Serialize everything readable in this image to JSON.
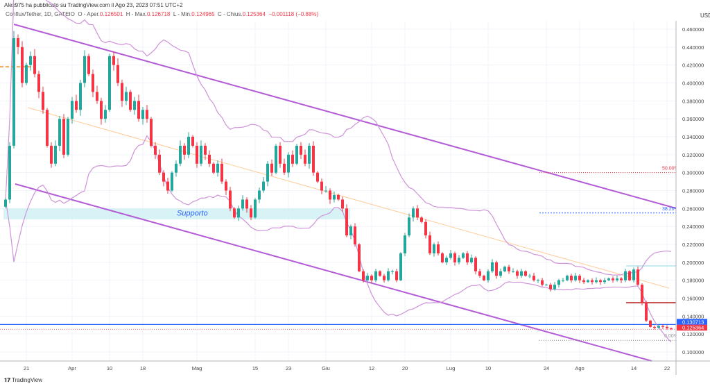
{
  "header": {
    "publisher": "Alex975 ha pubblicato su TradingView.com il Ago 23, 2023 07:51 UTC+2",
    "symbol": "Conflux/Tether, 1D, GATEIO",
    "open_label": "O - Aper.",
    "open": "0.126501",
    "high_label": "H - Max.",
    "high": "0.126718",
    "low_label": "L - Min.",
    "low": "0.124965",
    "close_label": "C - Chius.",
    "close": "0.125364",
    "change": "−0.001118 (−0.88%)",
    "currency": "USDT"
  },
  "price_axis": [
    "0.460000",
    "0.440000",
    "0.420000",
    "0.400000",
    "0.380000",
    "0.360000",
    "0.340000",
    "0.320000",
    "0.300000",
    "0.280000",
    "0.260000",
    "0.240000",
    "0.220000",
    "0.200000",
    "0.180000",
    "0.160000",
    "0.140000",
    "0.120000",
    "0.100000"
  ],
  "price_badges": {
    "blue": "0.130713",
    "red": "0.125364"
  },
  "date_axis": [
    {
      "label": "21",
      "day": 5
    },
    {
      "label": "Apr",
      "day": 16
    },
    {
      "label": "10",
      "day": 25
    },
    {
      "label": "18",
      "day": 33
    },
    {
      "label": "Mag",
      "day": 46
    },
    {
      "label": "15",
      "day": 60
    },
    {
      "label": "23",
      "day": 68
    },
    {
      "label": "Giu",
      "day": 77
    },
    {
      "label": "12",
      "day": 88
    },
    {
      "label": "20",
      "day": 96
    },
    {
      "label": "Lug",
      "day": 107
    },
    {
      "label": "10",
      "day": 116
    },
    {
      "label": "24",
      "day": 130
    },
    {
      "label": "Ago",
      "day": 138
    },
    {
      "label": "14",
      "day": 151
    },
    {
      "label": "22",
      "day": 159
    }
  ],
  "annotations": {
    "support": "Supporto",
    "fib50": "50.00%",
    "fib382": "38.20%",
    "fib0": "0.00%"
  },
  "brand": "TradingView",
  "colors": {
    "up": "#26a69a",
    "down": "#f23645",
    "bands": "#ce93d8",
    "channel": "#b35cd6",
    "blue_line": "#2962ff"
  },
  "chart_data": {
    "type": "candlestick",
    "start_date": "2023-03-16",
    "closes": [
      0.27,
      0.33,
      0.45,
      0.44,
      0.4,
      0.42,
      0.43,
      0.41,
      0.39,
      0.37,
      0.33,
      0.31,
      0.33,
      0.36,
      0.32,
      0.36,
      0.38,
      0.37,
      0.4,
      0.43,
      0.41,
      0.39,
      0.38,
      0.36,
      0.37,
      0.43,
      0.42,
      0.4,
      0.38,
      0.39,
      0.37,
      0.38,
      0.36,
      0.37,
      0.36,
      0.33,
      0.32,
      0.3,
      0.29,
      0.28,
      0.3,
      0.31,
      0.33,
      0.32,
      0.34,
      0.33,
      0.31,
      0.33,
      0.32,
      0.31,
      0.3,
      0.31,
      0.29,
      0.28,
      0.26,
      0.25,
      0.26,
      0.27,
      0.26,
      0.25,
      0.27,
      0.28,
      0.29,
      0.31,
      0.3,
      0.33,
      0.31,
      0.3,
      0.32,
      0.31,
      0.33,
      0.32,
      0.31,
      0.33,
      0.3,
      0.29,
      0.28,
      0.28,
      0.27,
      0.275,
      0.27,
      0.26,
      0.23,
      0.24,
      0.22,
      0.19,
      0.18,
      0.185,
      0.18,
      0.19,
      0.185,
      0.18,
      0.19,
      0.19,
      0.18,
      0.21,
      0.23,
      0.25,
      0.26,
      0.25,
      0.245,
      0.23,
      0.21,
      0.22,
      0.21,
      0.2,
      0.205,
      0.21,
      0.2,
      0.205,
      0.21,
      0.2,
      0.205,
      0.19,
      0.185,
      0.18,
      0.19,
      0.2,
      0.185,
      0.19,
      0.195,
      0.19,
      0.19,
      0.185,
      0.19,
      0.185,
      0.185,
      0.18,
      0.18,
      0.175,
      0.175,
      0.17,
      0.175,
      0.18,
      0.18,
      0.185,
      0.18,
      0.185,
      0.18,
      0.178,
      0.18,
      0.178,
      0.18,
      0.178,
      0.18,
      0.182,
      0.18,
      0.182,
      0.18,
      0.19,
      0.18,
      0.192,
      0.175,
      0.155,
      0.135,
      0.128,
      0.127,
      0.129,
      0.128,
      0.1265,
      0.125364
    ],
    "ylim": [
      0.09,
      0.47
    ],
    "levels": {
      "fib50": 0.3,
      "fib382": 0.255,
      "fib0": 0.113,
      "blue": 0.130713,
      "resistance": 0.155,
      "cyan": 0.196,
      "red_dashed": 0.418
    },
    "support_zone": [
      0.248,
      0.26
    ],
    "bollinger_period": 20
  }
}
